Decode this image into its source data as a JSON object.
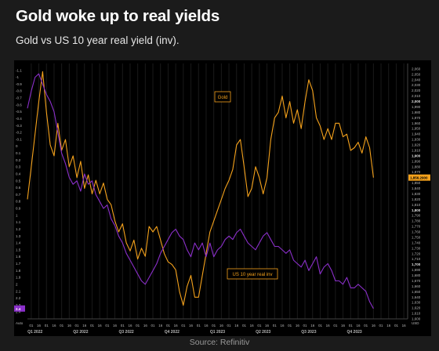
{
  "header": {
    "title": "Gold woke up to real yields",
    "subtitle": "Gold vs US 10 year real yield (inv)."
  },
  "footer": {
    "source": "Source: Refinitiv"
  },
  "colors": {
    "gold": "#f5a21c",
    "real_yield": "#8a2fc9",
    "background": "#000000",
    "axis_text": "#b8b8b8",
    "grid": "#1a1a1a"
  },
  "chart_data": {
    "type": "line",
    "title": "Gold woke up to real yields",
    "subtitle": "Gold vs US 10 year real yield (inv).",
    "x_axis": {
      "quarter_labels": [
        "Q1 2022",
        "Q2 2022",
        "Q3 2022",
        "Q4 2022",
        "Q1 2023",
        "Q2 2023",
        "Q3 2023",
        "Q4 2023"
      ],
      "day_ticks": [
        "01",
        "16",
        "01",
        "16",
        "01",
        "16",
        "01",
        "16",
        "01",
        "16",
        "01",
        "16",
        "01",
        "16",
        "01",
        "16",
        "01",
        "16",
        "01",
        "16",
        "01",
        "16",
        "01",
        "16",
        "01",
        "16",
        "01",
        "16",
        "01",
        "16",
        "01",
        "16",
        "01",
        "16",
        "01",
        "16",
        "01",
        "16",
        "01",
        "16",
        "01",
        "16",
        "01",
        "16",
        "01",
        "16",
        "01",
        "16",
        "01",
        "16"
      ]
    },
    "left_axis": {
      "label": "Auto",
      "inverted": true,
      "range": [
        -1.2,
        2.5
      ],
      "ticks": [
        -1.1,
        -1,
        -0.9,
        -0.8,
        -0.7,
        -0.6,
        -0.5,
        -0.4,
        -0.3,
        -0.2,
        -0.1,
        0,
        0.1,
        0.2,
        0.3,
        0.4,
        0.5,
        0.6,
        0.7,
        0.8,
        0.9,
        1,
        1.1,
        1.2,
        1.3,
        1.4,
        1.5,
        1.6,
        1.7,
        1.8,
        1.9,
        2,
        2.1,
        2.2,
        2.3,
        2.4
      ],
      "last_value_label": "2.4"
    },
    "right_axis": {
      "label": "USD",
      "range": [
        1600,
        2070
      ],
      "ticks": [
        2060,
        2050,
        2040,
        2030,
        2020,
        2010,
        2000,
        1990,
        1980,
        1970,
        1960,
        1950,
        1940,
        1930,
        1920,
        1910,
        1900,
        1890,
        1880,
        1870,
        1860,
        1850,
        1840,
        1830,
        1820,
        1810,
        1800,
        1790,
        1780,
        1770,
        1760,
        1750,
        1740,
        1730,
        1720,
        1710,
        1700,
        1690,
        1680,
        1670,
        1660,
        1650,
        1640,
        1630,
        1620,
        1610,
        1600
      ],
      "bold_ticks": [
        2000,
        1900,
        1800,
        1700
      ],
      "last_value_label": "1,856.2900"
    },
    "series": [
      {
        "name": "Gold",
        "axis": "right",
        "color": "#f5a21c",
        "x": [
          0,
          0.01,
          0.02,
          0.03,
          0.04,
          0.05,
          0.06,
          0.07,
          0.08,
          0.09,
          0.1,
          0.11,
          0.12,
          0.13,
          0.14,
          0.15,
          0.16,
          0.17,
          0.18,
          0.19,
          0.2,
          0.21,
          0.22,
          0.23,
          0.24,
          0.25,
          0.26,
          0.27,
          0.28,
          0.29,
          0.3,
          0.31,
          0.32,
          0.33,
          0.34,
          0.35,
          0.36,
          0.37,
          0.38,
          0.39,
          0.4,
          0.41,
          0.42,
          0.43,
          0.44,
          0.45,
          0.46,
          0.47,
          0.48,
          0.49,
          0.5,
          0.51,
          0.52,
          0.53,
          0.54,
          0.55,
          0.56,
          0.57,
          0.58,
          0.59,
          0.6,
          0.61,
          0.62,
          0.63,
          0.64,
          0.65,
          0.66,
          0.67,
          0.68,
          0.69,
          0.7,
          0.71,
          0.72,
          0.73,
          0.74,
          0.75,
          0.76,
          0.77,
          0.78,
          0.79,
          0.8,
          0.81,
          0.82,
          0.83,
          0.84,
          0.85,
          0.86,
          0.87,
          0.88,
          0.89,
          0.9,
          0.91
        ],
        "y": [
          1820,
          1880,
          1940,
          2000,
          2055,
          1980,
          1920,
          1900,
          1960,
          1910,
          1930,
          1880,
          1900,
          1860,
          1890,
          1840,
          1865,
          1830,
          1855,
          1830,
          1850,
          1820,
          1810,
          1780,
          1760,
          1775,
          1740,
          1725,
          1745,
          1710,
          1730,
          1715,
          1770,
          1760,
          1770,
          1745,
          1720,
          1705,
          1700,
          1690,
          1650,
          1625,
          1660,
          1680,
          1640,
          1640,
          1680,
          1720,
          1760,
          1780,
          1800,
          1820,
          1840,
          1855,
          1875,
          1920,
          1930,
          1880,
          1825,
          1840,
          1880,
          1860,
          1830,
          1860,
          1930,
          1970,
          1980,
          2010,
          1970,
          2000,
          1960,
          1985,
          1950,
          2000,
          2040,
          2020,
          1970,
          1955,
          1930,
          1950,
          1930,
          1960,
          1960,
          1935,
          1940,
          1910,
          1915,
          1925,
          1905,
          1935,
          1915,
          1860
        ]
      },
      {
        "name": "US 10 year real inv",
        "axis": "left",
        "color": "#8a2fc9",
        "x": [
          0,
          0.01,
          0.02,
          0.03,
          0.04,
          0.05,
          0.06,
          0.07,
          0.08,
          0.09,
          0.1,
          0.11,
          0.12,
          0.13,
          0.14,
          0.15,
          0.16,
          0.17,
          0.18,
          0.19,
          0.2,
          0.21,
          0.22,
          0.23,
          0.24,
          0.25,
          0.26,
          0.27,
          0.28,
          0.29,
          0.3,
          0.31,
          0.32,
          0.33,
          0.34,
          0.35,
          0.36,
          0.37,
          0.38,
          0.39,
          0.4,
          0.41,
          0.42,
          0.43,
          0.44,
          0.45,
          0.46,
          0.47,
          0.48,
          0.49,
          0.5,
          0.51,
          0.52,
          0.53,
          0.54,
          0.55,
          0.56,
          0.57,
          0.58,
          0.59,
          0.6,
          0.61,
          0.62,
          0.63,
          0.64,
          0.65,
          0.66,
          0.67,
          0.68,
          0.69,
          0.7,
          0.71,
          0.72,
          0.73,
          0.74,
          0.75,
          0.76,
          0.77,
          0.78,
          0.79,
          0.8,
          0.81,
          0.82,
          0.83,
          0.84,
          0.85,
          0.86,
          0.87,
          0.88,
          0.89,
          0.9,
          0.91
        ],
        "y": [
          -0.55,
          -0.8,
          -1.0,
          -1.05,
          -0.9,
          -0.75,
          -0.65,
          -0.5,
          -0.2,
          0.1,
          0.25,
          0.45,
          0.55,
          0.5,
          0.65,
          0.4,
          0.55,
          0.5,
          0.7,
          0.8,
          0.9,
          0.85,
          1.05,
          1.15,
          1.3,
          1.4,
          1.55,
          1.65,
          1.75,
          1.85,
          1.95,
          2.0,
          1.9,
          1.8,
          1.7,
          1.55,
          1.45,
          1.35,
          1.25,
          1.2,
          1.3,
          1.35,
          1.5,
          1.6,
          1.4,
          1.5,
          1.4,
          1.6,
          1.4,
          1.6,
          1.5,
          1.45,
          1.35,
          1.3,
          1.35,
          1.25,
          1.2,
          1.3,
          1.4,
          1.45,
          1.5,
          1.4,
          1.3,
          1.25,
          1.35,
          1.45,
          1.45,
          1.5,
          1.55,
          1.5,
          1.65,
          1.7,
          1.75,
          1.65,
          1.8,
          1.7,
          1.6,
          1.85,
          1.75,
          1.7,
          1.8,
          1.95,
          1.95,
          2.0,
          1.9,
          2.05,
          2.05,
          2.0,
          2.05,
          2.1,
          2.25,
          2.35
        ]
      }
    ],
    "annotations": [
      {
        "text": "Gold",
        "series": "Gold"
      },
      {
        "text": "US 10 year real inv",
        "series": "US 10 year real inv"
      }
    ]
  }
}
